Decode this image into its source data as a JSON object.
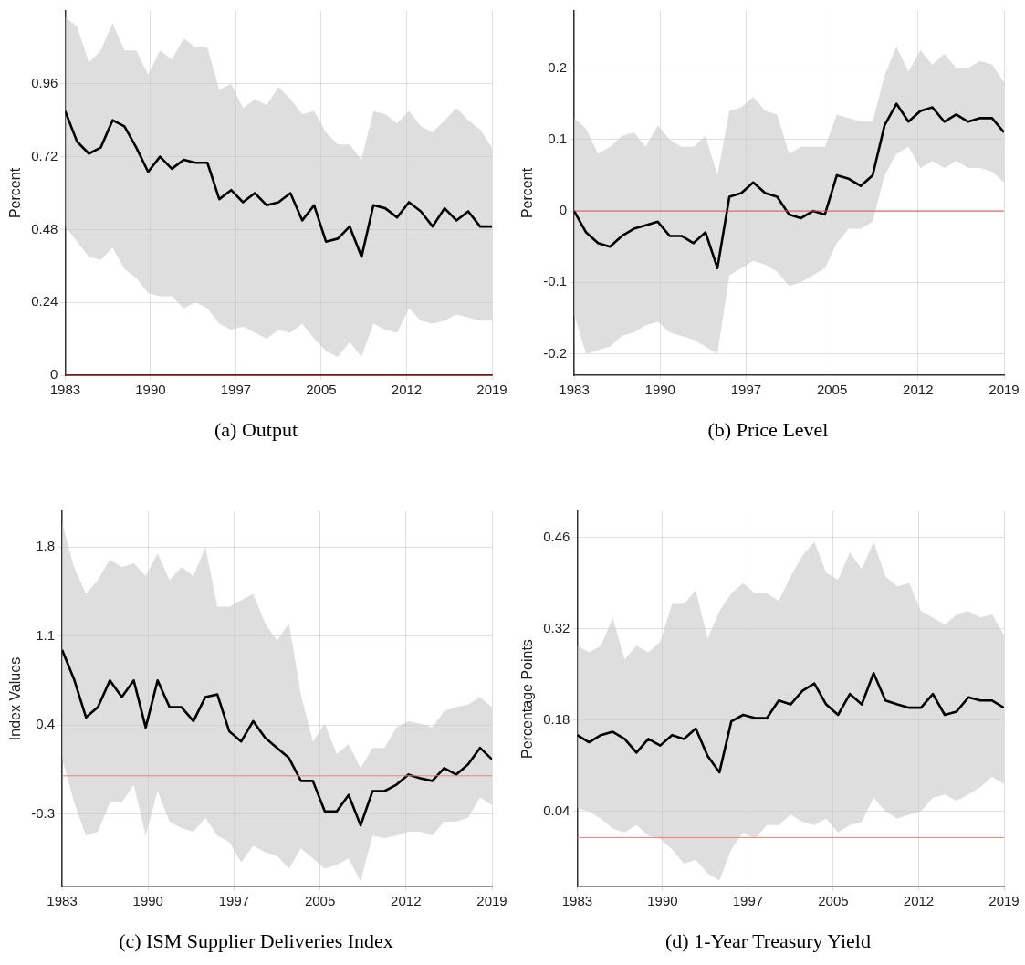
{
  "chart_data": [
    {
      "type": "line",
      "title": "(a) Output",
      "ylabel": "Percent",
      "xlim": [
        1983,
        2019
      ],
      "xticks": [
        {
          "value": 1983,
          "label": "1983"
        },
        {
          "value": 1990.2,
          "label": "1990"
        },
        {
          "value": 1997.4,
          "label": "1997"
        },
        {
          "value": 2004.6,
          "label": "2005"
        },
        {
          "value": 2011.8,
          "label": "2012"
        },
        {
          "value": 2019,
          "label": "2019"
        }
      ],
      "ylim": [
        0,
        1.2
      ],
      "yticks": [
        0,
        0.24,
        0.48,
        0.72,
        0.96
      ],
      "grid": true,
      "x": [
        1983,
        1984,
        1985,
        1986,
        1987,
        1988,
        1989,
        1990,
        1991,
        1992,
        1993,
        1994,
        1995,
        1996,
        1997,
        1998,
        1999,
        2000,
        2001,
        2002,
        2003,
        2004,
        2005,
        2006,
        2007,
        2008,
        2009,
        2010,
        2011,
        2012,
        2013,
        2014,
        2015,
        2016,
        2017,
        2018,
        2019
      ],
      "ref_lines": [
        {
          "axis": "y",
          "value": 0,
          "color": "#c00000"
        }
      ],
      "series": [
        {
          "color": "#000000",
          "values": [
            0.87,
            0.77,
            0.73,
            0.75,
            0.84,
            0.82,
            0.75,
            0.67,
            0.72,
            0.68,
            0.71,
            0.7,
            0.7,
            0.58,
            0.61,
            0.57,
            0.6,
            0.56,
            0.57,
            0.6,
            0.51,
            0.56,
            0.44,
            0.45,
            0.49,
            0.39,
            0.56,
            0.55,
            0.52,
            0.57,
            0.54,
            0.49,
            0.55,
            0.51,
            0.54,
            0.49,
            0.49
          ],
          "upper": [
            1.18,
            1.15,
            1.03,
            1.07,
            1.16,
            1.07,
            1.07,
            0.99,
            1.07,
            1.04,
            1.11,
            1.08,
            1.08,
            0.94,
            0.96,
            0.88,
            0.91,
            0.89,
            0.95,
            0.91,
            0.86,
            0.87,
            0.8,
            0.76,
            0.76,
            0.71,
            0.87,
            0.86,
            0.83,
            0.87,
            0.82,
            0.8,
            0.84,
            0.88,
            0.84,
            0.81,
            0.75
          ],
          "lower": [
            0.49,
            0.44,
            0.39,
            0.38,
            0.42,
            0.35,
            0.32,
            0.27,
            0.26,
            0.26,
            0.22,
            0.24,
            0.22,
            0.17,
            0.15,
            0.16,
            0.14,
            0.12,
            0.15,
            0.14,
            0.17,
            0.12,
            0.08,
            0.06,
            0.11,
            0.06,
            0.17,
            0.15,
            0.14,
            0.22,
            0.18,
            0.17,
            0.18,
            0.2,
            0.19,
            0.18,
            0.18
          ]
        }
      ]
    },
    {
      "type": "line",
      "title": "(b) Price Level",
      "ylabel": "Percent",
      "xlim": [
        1983,
        2019
      ],
      "xticks": [
        {
          "value": 1983,
          "label": "1983"
        },
        {
          "value": 1990.2,
          "label": "1990"
        },
        {
          "value": 1997.4,
          "label": "1997"
        },
        {
          "value": 2004.6,
          "label": "2005"
        },
        {
          "value": 2011.8,
          "label": "2012"
        },
        {
          "value": 2019,
          "label": "2019"
        }
      ],
      "ylim": [
        -0.23,
        0.28
      ],
      "yticks": [
        -0.2,
        -0.1,
        0,
        0.1,
        0.2
      ],
      "grid": true,
      "x": [
        1983,
        1984,
        1985,
        1986,
        1987,
        1988,
        1989,
        1990,
        1991,
        1992,
        1993,
        1994,
        1995,
        1996,
        1997,
        1998,
        1999,
        2000,
        2001,
        2002,
        2003,
        2004,
        2005,
        2006,
        2007,
        2008,
        2009,
        2010,
        2011,
        2012,
        2013,
        2014,
        2015,
        2016,
        2017,
        2018,
        2019
      ],
      "ref_lines": [
        {
          "axis": "y",
          "value": 0,
          "color": "#e05050"
        }
      ],
      "series": [
        {
          "color": "#000000",
          "values": [
            0,
            -0.03,
            -0.045,
            -0.05,
            -0.035,
            -0.025,
            -0.02,
            -0.015,
            -0.035,
            -0.035,
            -0.045,
            -0.03,
            -0.08,
            0.02,
            0.025,
            0.04,
            0.025,
            0.02,
            -0.005,
            -0.01,
            0,
            -0.005,
            0.05,
            0.045,
            0.035,
            0.05,
            0.12,
            0.15,
            0.125,
            0.14,
            0.145,
            0.125,
            0.135,
            0.125,
            0.13,
            0.13,
            0.11
          ],
          "upper": [
            0.13,
            0.115,
            0.08,
            0.09,
            0.105,
            0.11,
            0.09,
            0.12,
            0.1,
            0.09,
            0.09,
            0.105,
            0.05,
            0.14,
            0.145,
            0.16,
            0.14,
            0.135,
            0.08,
            0.09,
            0.09,
            0.09,
            0.135,
            0.13,
            0.125,
            0.125,
            0.19,
            0.23,
            0.195,
            0.225,
            0.205,
            0.22,
            0.2,
            0.2,
            0.21,
            0.205,
            0.18
          ],
          "lower": [
            -0.145,
            -0.2,
            -0.195,
            -0.19,
            -0.175,
            -0.17,
            -0.16,
            -0.155,
            -0.17,
            -0.175,
            -0.18,
            -0.19,
            -0.2,
            -0.09,
            -0.08,
            -0.07,
            -0.075,
            -0.085,
            -0.105,
            -0.1,
            -0.09,
            -0.08,
            -0.045,
            -0.025,
            -0.025,
            -0.015,
            0.05,
            0.08,
            0.09,
            0.06,
            0.07,
            0.06,
            0.07,
            0.06,
            0.06,
            0.055,
            0.04
          ]
        }
      ]
    },
    {
      "type": "line",
      "title": "(c) ISM Supplier Deliveries Index",
      "ylabel": "Index Values",
      "xlim": [
        1983,
        2019
      ],
      "xticks": [
        {
          "value": 1983,
          "label": "1983"
        },
        {
          "value": 1990.2,
          "label": "1990"
        },
        {
          "value": 1997.4,
          "label": "1997"
        },
        {
          "value": 2004.6,
          "label": "2005"
        },
        {
          "value": 2011.8,
          "label": "2012"
        },
        {
          "value": 2019,
          "label": "2019"
        }
      ],
      "ylim": [
        -0.87,
        2.08
      ],
      "yticks": [
        -0.3,
        0.4,
        1.1,
        1.8
      ],
      "grid": true,
      "x": [
        1983,
        1984,
        1985,
        1986,
        1987,
        1988,
        1989,
        1990,
        1991,
        1992,
        1993,
        1994,
        1995,
        1996,
        1997,
        1998,
        1999,
        2000,
        2001,
        2002,
        2003,
        2004,
        2005,
        2006,
        2007,
        2008,
        2009,
        2010,
        2011,
        2012,
        2013,
        2014,
        2015,
        2016,
        2017,
        2018,
        2019
      ],
      "ref_lines": [
        {
          "axis": "y",
          "value": 0,
          "color": "#f08080"
        }
      ],
      "series": [
        {
          "color": "#000000",
          "values": [
            0.99,
            0.76,
            0.46,
            0.54,
            0.75,
            0.62,
            0.75,
            0.38,
            0.75,
            0.54,
            0.54,
            0.43,
            0.62,
            0.64,
            0.35,
            0.27,
            0.43,
            0.3,
            0.22,
            0.14,
            -0.04,
            -0.04,
            -0.28,
            -0.28,
            -0.15,
            -0.39,
            -0.12,
            -0.12,
            -0.07,
            0.01,
            -0.02,
            -0.04,
            0.06,
            0.01,
            0.09,
            0.22,
            0.13
          ],
          "upper": [
            1.99,
            1.64,
            1.43,
            1.54,
            1.7,
            1.64,
            1.67,
            1.57,
            1.75,
            1.54,
            1.64,
            1.57,
            1.8,
            1.33,
            1.33,
            1.38,
            1.43,
            1.2,
            1.06,
            1.2,
            0.64,
            0.27,
            0.41,
            0.17,
            0.25,
            0.06,
            0.22,
            0.22,
            0.38,
            0.43,
            0.41,
            0.38,
            0.51,
            0.54,
            0.56,
            0.62,
            0.54
          ],
          "lower": [
            0.14,
            -0.21,
            -0.47,
            -0.44,
            -0.21,
            -0.21,
            -0.07,
            -0.47,
            -0.12,
            -0.36,
            -0.41,
            -0.44,
            -0.33,
            -0.47,
            -0.52,
            -0.68,
            -0.55,
            -0.6,
            -0.63,
            -0.73,
            -0.57,
            -0.65,
            -0.73,
            -0.7,
            -0.65,
            -0.83,
            -0.47,
            -0.49,
            -0.47,
            -0.44,
            -0.44,
            -0.47,
            -0.36,
            -0.36,
            -0.33,
            -0.17,
            -0.23
          ]
        }
      ]
    },
    {
      "type": "line",
      "title": "(d) 1-Year Treasury Yield",
      "ylabel": "Percentage Points",
      "xlim": [
        1983,
        2019
      ],
      "xticks": [
        {
          "value": 1983,
          "label": "1983"
        },
        {
          "value": 1990.2,
          "label": "1990"
        },
        {
          "value": 1997.4,
          "label": "1997"
        },
        {
          "value": 2004.6,
          "label": "2005"
        },
        {
          "value": 2011.8,
          "label": "2012"
        },
        {
          "value": 2019,
          "label": "2019"
        }
      ],
      "ylim": [
        -0.075,
        0.5
      ],
      "yticks": [
        0.04,
        0.18,
        0.32,
        0.46
      ],
      "grid": true,
      "x": [
        1983,
        1984,
        1985,
        1986,
        1987,
        1988,
        1989,
        1990,
        1991,
        1992,
        1993,
        1994,
        1995,
        1996,
        1997,
        1998,
        1999,
        2000,
        2001,
        2002,
        2003,
        2004,
        2005,
        2006,
        2007,
        2008,
        2009,
        2010,
        2011,
        2012,
        2013,
        2014,
        2015,
        2016,
        2017,
        2018,
        2019
      ],
      "ref_lines": [
        {
          "axis": "y",
          "value": 0,
          "color": "#f08080"
        }
      ],
      "series": [
        {
          "color": "#000000",
          "values": [
            0.157,
            0.146,
            0.157,
            0.162,
            0.151,
            0.13,
            0.151,
            0.141,
            0.157,
            0.151,
            0.167,
            0.125,
            0.1,
            0.178,
            0.188,
            0.183,
            0.183,
            0.21,
            0.204,
            0.225,
            0.236,
            0.204,
            0.188,
            0.22,
            0.204,
            0.252,
            0.21,
            0.204,
            0.199,
            0.199,
            0.22,
            0.188,
            0.193,
            0.215,
            0.21,
            0.21,
            0.199
          ],
          "upper": [
            0.294,
            0.284,
            0.294,
            0.337,
            0.273,
            0.294,
            0.284,
            0.3,
            0.358,
            0.358,
            0.379,
            0.305,
            0.347,
            0.374,
            0.39,
            0.374,
            0.374,
            0.363,
            0.4,
            0.432,
            0.453,
            0.406,
            0.395,
            0.437,
            0.411,
            0.453,
            0.4,
            0.385,
            0.39,
            0.347,
            0.337,
            0.326,
            0.342,
            0.347,
            0.337,
            0.342,
            0.31
          ],
          "lower": [
            0.045,
            0.04,
            0.029,
            0.014,
            0.008,
            0.019,
            0.003,
            -0.002,
            -0.018,
            -0.04,
            -0.034,
            -0.055,
            -0.066,
            -0.018,
            0.008,
            -0.002,
            0.019,
            0.019,
            0.035,
            0.024,
            0.019,
            0.029,
            0.008,
            0.019,
            0.024,
            0.061,
            0.04,
            0.029,
            0.035,
            0.04,
            0.061,
            0.066,
            0.056,
            0.066,
            0.077,
            0.093,
            0.082
          ]
        }
      ]
    }
  ]
}
